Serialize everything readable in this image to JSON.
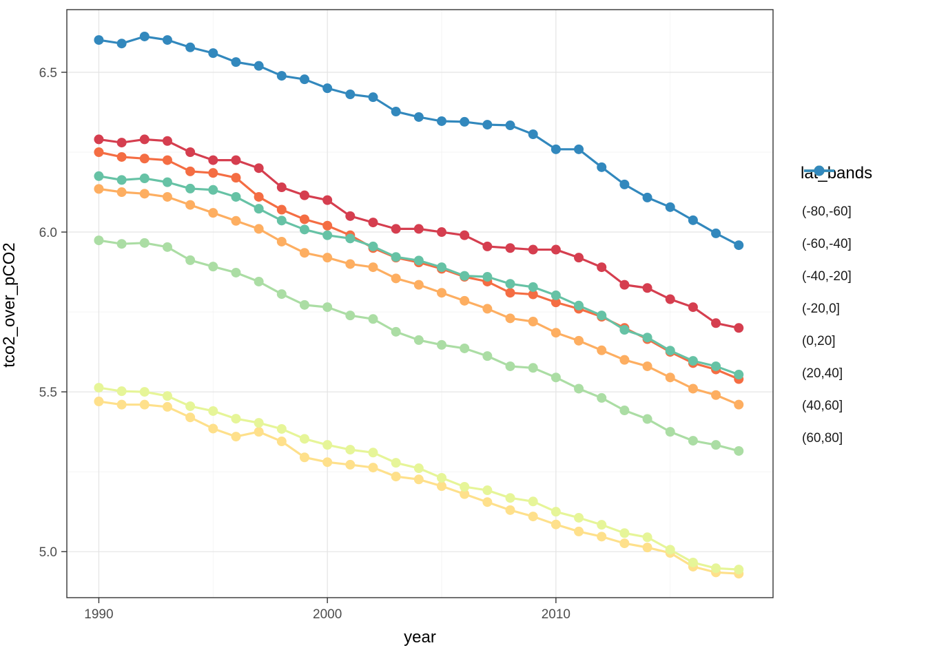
{
  "chart_data": {
    "type": "line",
    "title": "",
    "xlabel": "year",
    "ylabel": "tco2_over_pCO2",
    "legend_title": "lat_bands",
    "legend_position": "right",
    "grid": true,
    "xlim": [
      1988.6,
      2019.5
    ],
    "ylim": [
      4.856,
      6.696
    ],
    "x_ticks": [
      1990,
      2000,
      2010
    ],
    "x_minor": [
      1995,
      2005,
      2015
    ],
    "y_ticks": [
      5.0,
      5.5,
      6.0,
      6.5
    ],
    "y_minor": [
      5.25,
      5.75,
      6.25
    ],
    "x": [
      1990,
      1991,
      1992,
      1993,
      1994,
      1995,
      1996,
      1997,
      1998,
      1999,
      2000,
      2001,
      2002,
      2003,
      2004,
      2005,
      2006,
      2007,
      2008,
      2009,
      2010,
      2011,
      2012,
      2013,
      2014,
      2015,
      2016,
      2017,
      2018
    ],
    "series": [
      {
        "name": "(-80,-60]",
        "color": "#d53e4f",
        "values": [
          6.29,
          6.28,
          6.29,
          6.285,
          6.25,
          6.225,
          6.225,
          6.2,
          6.14,
          6.115,
          6.1,
          6.05,
          6.03,
          6.01,
          6.01,
          6.0,
          5.99,
          5.955,
          5.95,
          5.945,
          5.945,
          5.92,
          5.89,
          5.835,
          5.825,
          5.79,
          5.765,
          5.715,
          5.7
        ]
      },
      {
        "name": "(-60,-40]",
        "color": "#f46d43",
        "values": [
          6.25,
          6.235,
          6.23,
          6.225,
          6.19,
          6.185,
          6.17,
          6.11,
          6.07,
          6.04,
          6.02,
          5.99,
          5.95,
          5.92,
          5.905,
          5.885,
          5.86,
          5.845,
          5.81,
          5.805,
          5.78,
          5.76,
          5.735,
          5.7,
          5.665,
          5.625,
          5.59,
          5.57,
          5.54
        ]
      },
      {
        "name": "(-40,-20]",
        "color": "#fdae61",
        "values": [
          6.135,
          6.125,
          6.12,
          6.11,
          6.085,
          6.06,
          6.035,
          6.01,
          5.97,
          5.935,
          5.92,
          5.9,
          5.89,
          5.855,
          5.835,
          5.81,
          5.785,
          5.76,
          5.73,
          5.72,
          5.685,
          5.66,
          5.63,
          5.6,
          5.58,
          5.545,
          5.51,
          5.49,
          5.46
        ]
      },
      {
        "name": "(-20,0]",
        "color": "#fee08b",
        "values": [
          5.47,
          5.46,
          5.46,
          5.453,
          5.42,
          5.385,
          5.36,
          5.375,
          5.345,
          5.295,
          5.28,
          5.272,
          5.263,
          5.235,
          5.226,
          5.205,
          5.18,
          5.155,
          5.13,
          5.11,
          5.085,
          5.063,
          5.047,
          5.026,
          5.013,
          4.996,
          4.953,
          4.935,
          4.931
        ]
      },
      {
        "name": "(0,20]",
        "color": "#e6f598",
        "values": [
          5.513,
          5.502,
          5.5,
          5.487,
          5.455,
          5.44,
          5.416,
          5.403,
          5.384,
          5.353,
          5.334,
          5.319,
          5.31,
          5.278,
          5.261,
          5.231,
          5.203,
          5.192,
          5.168,
          5.157,
          5.125,
          5.106,
          5.084,
          5.058,
          5.045,
          5.006,
          4.966,
          4.948,
          4.944
        ]
      },
      {
        "name": "(20,40]",
        "color": "#abdda4",
        "values": [
          5.974,
          5.963,
          5.966,
          5.953,
          5.912,
          5.892,
          5.873,
          5.845,
          5.806,
          5.772,
          5.765,
          5.739,
          5.728,
          5.688,
          5.662,
          5.647,
          5.636,
          5.612,
          5.58,
          5.575,
          5.545,
          5.51,
          5.481,
          5.442,
          5.415,
          5.375,
          5.347,
          5.334,
          5.315
        ]
      },
      {
        "name": "(40,60]",
        "color": "#66c2a5",
        "values": [
          6.175,
          6.163,
          6.168,
          6.156,
          6.136,
          6.132,
          6.11,
          6.073,
          6.036,
          6.008,
          5.99,
          5.98,
          5.955,
          5.922,
          5.911,
          5.89,
          5.863,
          5.86,
          5.838,
          5.828,
          5.802,
          5.77,
          5.739,
          5.694,
          5.67,
          5.629,
          5.597,
          5.58,
          5.554
        ]
      },
      {
        "name": "(60,80]",
        "color": "#3288bd",
        "values": [
          6.601,
          6.59,
          6.612,
          6.601,
          6.578,
          6.56,
          6.532,
          6.52,
          6.489,
          6.478,
          6.45,
          6.431,
          6.422,
          6.377,
          6.36,
          6.347,
          6.345,
          6.336,
          6.334,
          6.306,
          6.259,
          6.259,
          6.203,
          6.149,
          6.108,
          6.078,
          6.037,
          5.996,
          5.959
        ]
      }
    ],
    "style": {
      "grid_major": "#e4e4e4",
      "grid_minor": "#f1f1f1",
      "panel_border": "#333333",
      "tick_color": "#333333",
      "tick_label_color": "#4d4d4d"
    }
  }
}
